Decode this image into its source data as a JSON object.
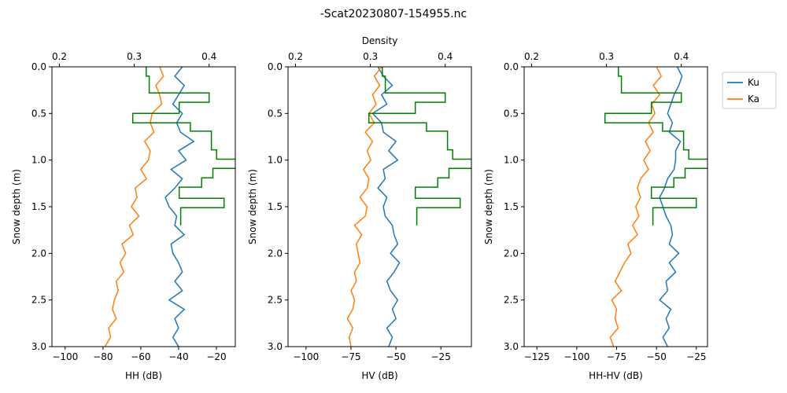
{
  "chart_data": {
    "type": "line",
    "title": "-Scat20230807-154955.nc",
    "legend": {
      "placement": "outside-right",
      "entries": [
        {
          "name": "Ku",
          "color": "#1f77b4"
        },
        {
          "name": "Ka",
          "color": "#ff7f0e"
        }
      ]
    },
    "density_color": "#008000",
    "density_axis": {
      "label": "Density",
      "ticks": [
        "0.2",
        "0.3",
        "0.4"
      ],
      "range": [
        0.19,
        0.435
      ]
    },
    "ylabel": "Snow depth (m)",
    "ylim": [
      3.0,
      0.0
    ],
    "yticks": [
      "0.0",
      "0.5",
      "1.0",
      "1.5",
      "2.0",
      "2.5",
      "3.0"
    ],
    "density_profile": {
      "depth": [
        0,
        0.1,
        0.1,
        0.28,
        0.28,
        0.38,
        0.38,
        0.5,
        0.5,
        0.6,
        0.6,
        0.69,
        0.69,
        0.89,
        0.89,
        0.99,
        0.99,
        1.09,
        1.09,
        1.19,
        1.19,
        1.29,
        1.29,
        1.41,
        1.41,
        1.51,
        1.51,
        1.7
      ],
      "density": [
        0.316,
        0.316,
        0.32,
        0.32,
        0.4,
        0.4,
        0.36,
        0.36,
        0.298,
        0.298,
        0.375,
        0.375,
        0.403,
        0.403,
        0.41,
        0.41,
        0.436,
        0.436,
        0.405,
        0.405,
        0.39,
        0.39,
        0.36,
        0.36,
        0.42,
        0.42,
        0.362,
        0.362
      ]
    },
    "panels": [
      {
        "xlabel": "HH (dB)",
        "xticks": [
          "−100",
          "−80",
          "−60",
          "−40",
          "−20"
        ],
        "xlim": [
          -107,
          -10
        ],
        "series": [
          {
            "name": "Ku",
            "depth": [
              0,
              0.1,
              0.2,
              0.3,
              0.4,
              0.5,
              0.6,
              0.7,
              0.8,
              0.9,
              1.0,
              1.1,
              1.2,
              1.3,
              1.4,
              1.5,
              1.6,
              1.7,
              1.8,
              1.9,
              2.0,
              2.1,
              2.2,
              2.3,
              2.4,
              2.5,
              2.6,
              2.7,
              2.8,
              2.9,
              3.0
            ],
            "values": [
              -38,
              -42,
              -37,
              -40,
              -43,
              -38,
              -41,
              -39,
              -32,
              -40,
              -36,
              -44,
              -38,
              -42,
              -47,
              -45,
              -41,
              -42,
              -37,
              -44,
              -43,
              -40,
              -38,
              -42,
              -38,
              -45,
              -37,
              -42,
              -40,
              -43,
              -40
            ]
          },
          {
            "name": "Ka",
            "depth": [
              0,
              0.1,
              0.2,
              0.3,
              0.4,
              0.5,
              0.6,
              0.7,
              0.8,
              0.9,
              1.0,
              1.1,
              1.2,
              1.3,
              1.4,
              1.5,
              1.6,
              1.7,
              1.8,
              1.9,
              2.0,
              2.1,
              2.2,
              2.3,
              2.4,
              2.5,
              2.6,
              2.7,
              2.8,
              2.9,
              3.0
            ],
            "values": [
              -50,
              -48,
              -52,
              -50,
              -49,
              -54,
              -55,
              -53,
              -58,
              -55,
              -56,
              -60,
              -57,
              -63,
              -62,
              -65,
              -61,
              -66,
              -64,
              -70,
              -68,
              -71,
              -69,
              -73,
              -72,
              -74,
              -75,
              -73,
              -77,
              -76,
              -79
            ]
          }
        ]
      },
      {
        "xlabel": "HV (dB)",
        "xticks": [
          "−100",
          "−75",
          "−50",
          "−25"
        ],
        "xlim": [
          -110,
          -8
        ],
        "series": [
          {
            "name": "Ku",
            "depth": [
              0,
              0.1,
              0.2,
              0.3,
              0.4,
              0.5,
              0.6,
              0.7,
              0.8,
              0.9,
              1.0,
              1.1,
              1.2,
              1.3,
              1.4,
              1.5,
              1.6,
              1.7,
              1.8,
              1.9,
              2.0,
              2.1,
              2.2,
              2.3,
              2.4,
              2.5,
              2.6,
              2.7,
              2.8,
              2.9,
              3.0
            ],
            "values": [
              -60,
              -57,
              -52,
              -58,
              -55,
              -63,
              -58,
              -57,
              -50,
              -54,
              -49,
              -57,
              -56,
              -60,
              -55,
              -57,
              -56,
              -52,
              -51,
              -49,
              -53,
              -48,
              -51,
              -55,
              -53,
              -49,
              -52,
              -50,
              -55,
              -52,
              -54
            ]
          },
          {
            "name": "Ka",
            "depth": [
              0,
              0.1,
              0.2,
              0.3,
              0.4,
              0.5,
              0.6,
              0.7,
              0.8,
              0.9,
              1.0,
              1.1,
              1.2,
              1.3,
              1.4,
              1.5,
              1.6,
              1.7,
              1.8,
              1.9,
              2.0,
              2.1,
              2.2,
              2.3,
              2.4,
              2.5,
              2.6,
              2.7,
              2.8,
              2.9,
              3.0
            ],
            "values": [
              -58,
              -62,
              -59,
              -63,
              -61,
              -65,
              -62,
              -67,
              -63,
              -66,
              -64,
              -68,
              -65,
              -66,
              -70,
              -66,
              -67,
              -73,
              -69,
              -72,
              -71,
              -70,
              -73,
              -72,
              -75,
              -73,
              -74,
              -77,
              -74,
              -76,
              -75
            ]
          }
        ]
      },
      {
        "xlabel": "HH-HV (dB)",
        "xticks": [
          "−125",
          "−100",
          "−75",
          "−50",
          "−25"
        ],
        "xlim": [
          -133,
          -18
        ],
        "series": [
          {
            "name": "Ku",
            "depth": [
              0,
              0.1,
              0.2,
              0.3,
              0.4,
              0.5,
              0.6,
              0.7,
              0.8,
              0.9,
              1.0,
              1.1,
              1.2,
              1.3,
              1.4,
              1.5,
              1.6,
              1.7,
              1.8,
              1.9,
              2.0,
              2.1,
              2.2,
              2.3,
              2.4,
              2.5,
              2.6,
              2.7,
              2.8,
              2.9,
              3.0
            ],
            "values": [
              -37,
              -34,
              -36,
              -39,
              -41,
              -43,
              -40,
              -42,
              -35,
              -38,
              -38,
              -39,
              -43,
              -45,
              -48,
              -46,
              -44,
              -41,
              -40,
              -42,
              -36,
              -42,
              -38,
              -44,
              -43,
              -48,
              -41,
              -44,
              -42,
              -46,
              -43
            ]
          },
          {
            "name": "Ka",
            "depth": [
              0,
              0.1,
              0.2,
              0.3,
              0.4,
              0.5,
              0.6,
              0.7,
              0.8,
              0.9,
              1.0,
              1.1,
              1.2,
              1.3,
              1.4,
              1.5,
              1.6,
              1.7,
              1.8,
              1.9,
              2.0,
              2.1,
              2.2,
              2.3,
              2.4,
              2.5,
              2.6,
              2.7,
              2.8,
              2.9,
              3.0
            ],
            "values": [
              -50,
              -47,
              -52,
              -48,
              -53,
              -51,
              -55,
              -52,
              -57,
              -54,
              -58,
              -55,
              -60,
              -62,
              -60,
              -63,
              -61,
              -65,
              -62,
              -68,
              -66,
              -70,
              -73,
              -76,
              -72,
              -78,
              -75,
              -76,
              -74,
              -79,
              -77
            ]
          }
        ]
      }
    ]
  }
}
